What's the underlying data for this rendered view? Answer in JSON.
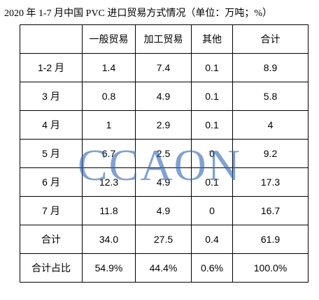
{
  "title": "2020 年 1-7 月中国 PVC 进口贸易方式情况（单位：万吨；%）",
  "table": {
    "header": [
      "一般贸易",
      "加工贸易",
      "其他",
      "合计"
    ],
    "rows": [
      [
        "1-2 月",
        "1.4",
        "7.4",
        "0.1",
        "8.9"
      ],
      [
        "3 月",
        "0.8",
        "4.9",
        "0.1",
        "5.8"
      ],
      [
        "4 月",
        "1",
        "2.9",
        "0.1",
        "4"
      ],
      [
        "5 月",
        "6.7",
        "2.5",
        "0",
        "9.2"
      ],
      [
        "6 月",
        "12.3",
        "4.9",
        "0.1",
        "17.3"
      ],
      [
        "7 月",
        "11.8",
        "4.9",
        "0",
        "16.7"
      ],
      [
        "合计",
        "34.0",
        "27.5",
        "0.4",
        "61.9"
      ],
      [
        "合计占比",
        "54.9%",
        "44.4%",
        "0.6%",
        "100.0%"
      ]
    ]
  },
  "watermark": "CCAON"
}
